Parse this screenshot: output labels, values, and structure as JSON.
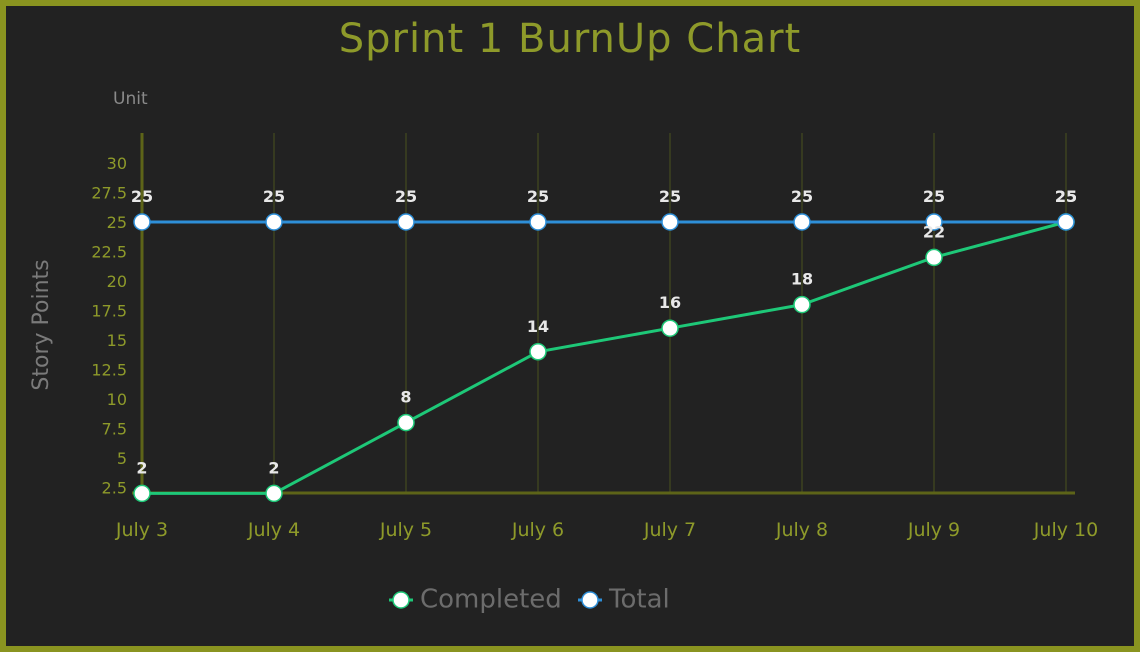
{
  "chart_data": {
    "type": "line",
    "title": "Sprint 1 BurnUp Chart",
    "unit_label": "Unit",
    "ylabel": "Story Points",
    "xlabel": "",
    "categories": [
      "July 3",
      "July 4",
      "July 5",
      "July 6",
      "July 7",
      "July 8",
      "July 9",
      "July 10"
    ],
    "y_ticks": [
      "2.5",
      "5",
      "7.5",
      "10",
      "12.5",
      "15",
      "17.5",
      "20",
      "22.5",
      "25",
      "27.5",
      "30"
    ],
    "ylim": [
      0,
      30
    ],
    "grid": "vertical",
    "legend_position": "bottom",
    "series": [
      {
        "name": "Completed",
        "values": [
          2,
          2,
          8,
          14,
          16,
          18,
          22,
          25
        ],
        "color": "#1ec878"
      },
      {
        "name": "Total",
        "values": [
          25,
          25,
          25,
          25,
          25,
          25,
          25,
          25
        ],
        "color": "#2e8fd8"
      }
    ]
  },
  "colors": {
    "background": "#222222",
    "frame": "#8a9420",
    "accent": "#8e9a2a",
    "marker_fill": "#ffffff"
  }
}
